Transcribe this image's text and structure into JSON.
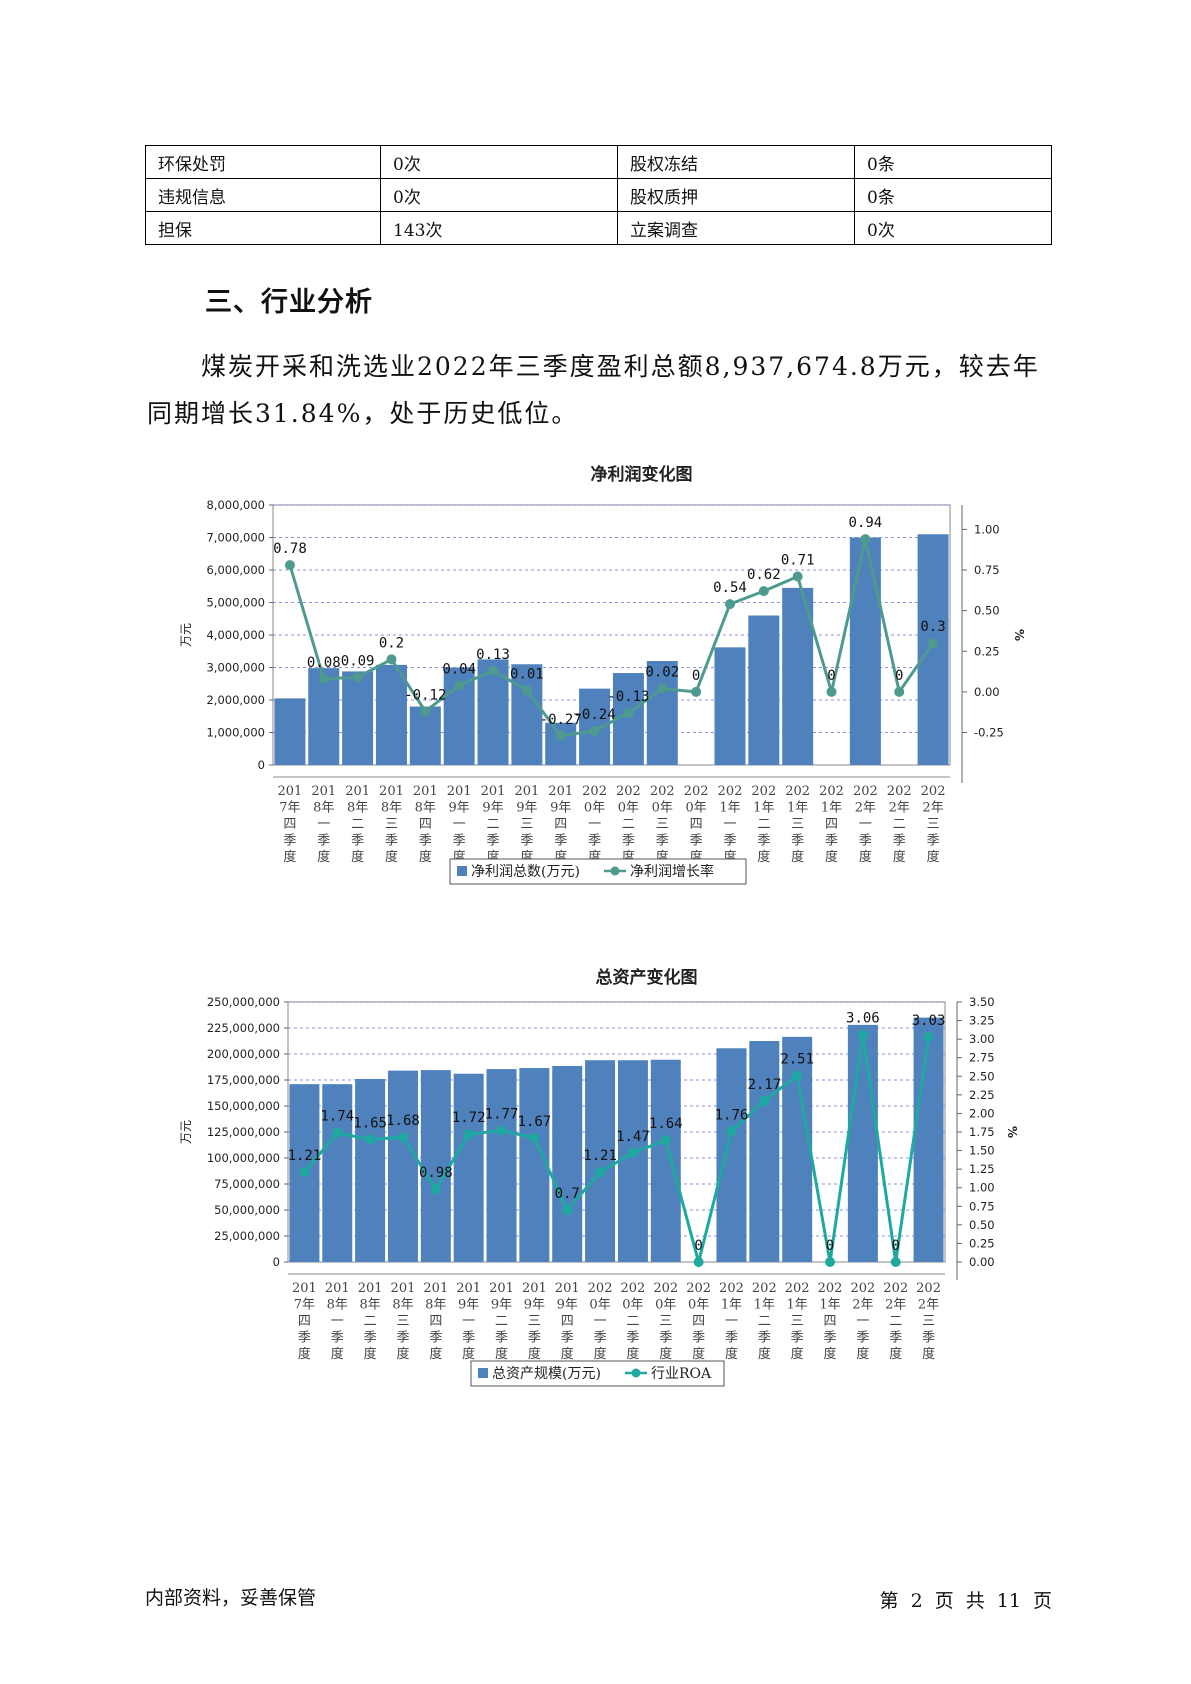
{
  "risk_table": {
    "rows": [
      [
        {
          "label": "环保处罚",
          "value": "0次"
        },
        {
          "label": "股权冻结",
          "value": "0条"
        }
      ],
      [
        {
          "label": "违规信息",
          "value": "0次"
        },
        {
          "label": "股权质押",
          "value": "0条"
        }
      ],
      [
        {
          "label": "担保",
          "value": "143次"
        },
        {
          "label": "立案调查",
          "value": "0次"
        }
      ]
    ]
  },
  "section": {
    "title": "三、行业分析",
    "paragraph": "煤炭开采和洗选业2022年三季度盈利总额8,937,674.8万元，较去年同期增长31.84%，处于历史低位。"
  },
  "chart_data": [
    {
      "type": "bar+line",
      "title": "净利润变化图",
      "ylabel": "万元",
      "y2label": "%",
      "ylim": [
        0,
        8000000
      ],
      "y2lim": [
        -0.45,
        1.15
      ],
      "yticks": [
        "0",
        "1,000,000",
        "2,000,000",
        "3,000,000",
        "4,000,000",
        "5,000,000",
        "6,000,000",
        "7,000,000",
        "8,000,000"
      ],
      "y2ticks": [
        "-0.25",
        "0.00",
        "0.25",
        "0.50",
        "0.75",
        "1.00"
      ],
      "y2tick_values": [
        -0.25,
        0,
        0.25,
        0.5,
        0.75,
        1.0
      ],
      "categories": [
        "2017年四季度",
        "2018年一季度",
        "2018年二季度",
        "2018年三季度",
        "2018年四季度",
        "2019年一季度",
        "2019年二季度",
        "2019年三季度",
        "2019年四季度",
        "2020年一季度",
        "2020年二季度",
        "2020年三季度",
        "2020年四季度",
        "2021年一季度",
        "2021年二季度",
        "2021年三季度",
        "2021年四季度",
        "2022年一季度",
        "2022年二季度",
        "2022年三季度"
      ],
      "category_label_lines": [
        [
          "201",
          "7年",
          "四",
          "季",
          "度"
        ],
        [
          "201",
          "8年",
          "一",
          "季",
          "度"
        ],
        [
          "201",
          "8年",
          "二",
          "季",
          "度"
        ],
        [
          "201",
          "8年",
          "三",
          "季",
          "度"
        ],
        [
          "201",
          "8年",
          "四",
          "季",
          "度"
        ],
        [
          "201",
          "9年",
          "一",
          "季",
          "度"
        ],
        [
          "201",
          "9年",
          "二",
          "季",
          "度"
        ],
        [
          "201",
          "9年",
          "三",
          "季",
          "度"
        ],
        [
          "201",
          "9年",
          "四",
          "季",
          "度"
        ],
        [
          "202",
          "0年",
          "一",
          "季",
          "度"
        ],
        [
          "202",
          "0年",
          "二",
          "季",
          "度"
        ],
        [
          "202",
          "0年",
          "三",
          "季",
          "度"
        ],
        [
          "202",
          "0年",
          "四",
          "季",
          "度"
        ],
        [
          "202",
          "1年",
          "一",
          "季",
          "度"
        ],
        [
          "202",
          "1年",
          "二",
          "季",
          "度"
        ],
        [
          "202",
          "1年",
          "三",
          "季",
          "度"
        ],
        [
          "202",
          "1年",
          "四",
          "季",
          "度"
        ],
        [
          "202",
          "2年",
          "一",
          "季",
          "度"
        ],
        [
          "202",
          "2年",
          "二",
          "季",
          "度"
        ],
        [
          "202",
          "2年",
          "三",
          "季",
          "度"
        ]
      ],
      "series": [
        {
          "name": "净利润总数(万元)",
          "kind": "bar",
          "color": "#4f81bd",
          "values": [
            2050000,
            2980000,
            2880000,
            3080000,
            1800000,
            3000000,
            3250000,
            3100000,
            1300000,
            2350000,
            2830000,
            3200000,
            null,
            3620000,
            4600000,
            5450000,
            null,
            7000000,
            null,
            7100000
          ]
        },
        {
          "name": "净利润增长率",
          "kind": "line",
          "color": "#4e9a8e",
          "values": [
            0.78,
            0.08,
            0.09,
            0.2,
            -0.12,
            0.04,
            0.13,
            0.01,
            -0.27,
            -0.24,
            -0.13,
            0.02,
            0,
            0.54,
            0.62,
            0.71,
            0,
            0.94,
            0,
            0.3
          ],
          "labels": [
            "0.78",
            "0.08",
            "0.09",
            "0.2",
            "-0.12",
            "0.04",
            "0.13",
            "0.01",
            "-0.27",
            "-0.24",
            "-0.13",
            "0.02",
            "0",
            "0.54",
            "0.62",
            "0.71",
            "0",
            "0.94",
            "0",
            "0.3"
          ]
        }
      ],
      "legend": "bottom",
      "grid": true
    },
    {
      "type": "bar+line",
      "title": "总资产变化图",
      "ylabel": "万元",
      "y2label": "%",
      "ylim": [
        0,
        250000000
      ],
      "y2lim": [
        0,
        3.5
      ],
      "yticks": [
        "0",
        "25,000,000",
        "50,000,000",
        "75,000,000",
        "100,000,000",
        "125,000,000",
        "150,000,000",
        "175,000,000",
        "200,000,000",
        "225,000,000",
        "250,000,000"
      ],
      "y2ticks": [
        "0.00",
        "0.25",
        "0.50",
        "0.75",
        "1.00",
        "1.25",
        "1.50",
        "1.75",
        "2.00",
        "2.25",
        "2.50",
        "2.75",
        "3.00",
        "3.25",
        "3.50"
      ],
      "y2tick_values": [
        0,
        0.25,
        0.5,
        0.75,
        1.0,
        1.25,
        1.5,
        1.75,
        2.0,
        2.25,
        2.5,
        2.75,
        3.0,
        3.25,
        3.5
      ],
      "categories": [
        "2017年四季度",
        "2018年一季度",
        "2018年二季度",
        "2018年三季度",
        "2018年四季度",
        "2019年一季度",
        "2019年二季度",
        "2019年三季度",
        "2019年四季度",
        "2020年一季度",
        "2020年二季度",
        "2020年三季度",
        "2020年四季度",
        "2021年一季度",
        "2021年二季度",
        "2021年三季度",
        "2021年四季度",
        "2022年一季度",
        "2022年二季度",
        "2022年三季度"
      ],
      "category_label_lines": [
        [
          "201",
          "7年",
          "四",
          "季",
          "度"
        ],
        [
          "201",
          "8年",
          "一",
          "季",
          "度"
        ],
        [
          "201",
          "8年",
          "二",
          "季",
          "度"
        ],
        [
          "201",
          "8年",
          "三",
          "季",
          "度"
        ],
        [
          "201",
          "8年",
          "四",
          "季",
          "度"
        ],
        [
          "201",
          "9年",
          "一",
          "季",
          "度"
        ],
        [
          "201",
          "9年",
          "二",
          "季",
          "度"
        ],
        [
          "201",
          "9年",
          "三",
          "季",
          "度"
        ],
        [
          "201",
          "9年",
          "四",
          "季",
          "度"
        ],
        [
          "202",
          "0年",
          "一",
          "季",
          "度"
        ],
        [
          "202",
          "0年",
          "二",
          "季",
          "度"
        ],
        [
          "202",
          "0年",
          "三",
          "季",
          "度"
        ],
        [
          "202",
          "0年",
          "四",
          "季",
          "度"
        ],
        [
          "202",
          "1年",
          "一",
          "季",
          "度"
        ],
        [
          "202",
          "1年",
          "二",
          "季",
          "度"
        ],
        [
          "202",
          "1年",
          "三",
          "季",
          "度"
        ],
        [
          "202",
          "1年",
          "四",
          "季",
          "度"
        ],
        [
          "202",
          "2年",
          "一",
          "季",
          "度"
        ],
        [
          "202",
          "2年",
          "二",
          "季",
          "度"
        ],
        [
          "202",
          "2年",
          "三",
          "季",
          "度"
        ]
      ],
      "series": [
        {
          "name": "总资产规模(万元)",
          "kind": "bar",
          "color": "#4f81bd",
          "values": [
            171000000,
            171000000,
            176000000,
            184000000,
            184500000,
            181000000,
            185500000,
            186500000,
            188500000,
            194000000,
            194000000,
            194500000,
            null,
            205500000,
            212500000,
            216500000,
            null,
            228000000,
            null,
            235000000
          ]
        },
        {
          "name": "行业ROA",
          "kind": "line",
          "color": "#1fa8a0",
          "values": [
            1.21,
            1.74,
            1.65,
            1.68,
            0.98,
            1.72,
            1.77,
            1.67,
            0.7,
            1.21,
            1.47,
            1.64,
            0,
            1.76,
            2.17,
            2.51,
            0,
            3.06,
            0,
            3.03
          ],
          "labels": [
            "1.21",
            "1.74",
            "1.65",
            "1.68",
            "0.98",
            "1.72",
            "1.77",
            "1.67",
            "0.7",
            "1.21",
            "1.47",
            "1.64",
            "0",
            "1.76",
            "2.17",
            "2.51",
            "0",
            "3.06",
            "0",
            "3.03"
          ]
        }
      ],
      "legend": "bottom",
      "grid": true
    }
  ],
  "footer": {
    "left": "内部资料，妥善保管",
    "right": "第 2 页  共 11 页"
  }
}
